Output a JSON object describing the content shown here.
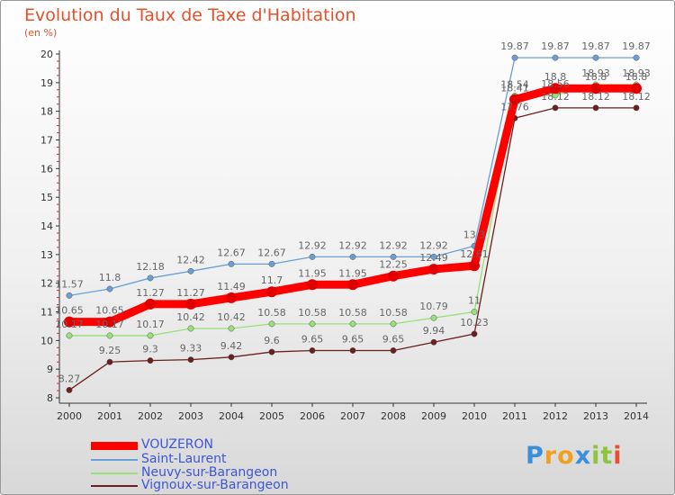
{
  "chart_data": {
    "type": "line",
    "title": "Evolution du Taux de Taxe d'Habitation",
    "subtitle": "(en %)",
    "x": [
      "2000",
      "2001",
      "2002",
      "2003",
      "2004",
      "2005",
      "2006",
      "2007",
      "2008",
      "2009",
      "2010",
      "2011",
      "2012",
      "2013",
      "2014"
    ],
    "ylim": [
      8,
      20
    ],
    "yticks": [
      "8",
      "9",
      "10",
      "11",
      "12",
      "13",
      "14",
      "15",
      "16",
      "17",
      "18",
      "19",
      "20"
    ],
    "grid": false,
    "legend": "bottom-left",
    "series": [
      {
        "name": "VOUZERON",
        "color": "#ff0000",
        "values": [
          10.65,
          10.65,
          11.27,
          11.27,
          11.49,
          11.7,
          11.95,
          11.95,
          12.25,
          12.49,
          12.61,
          18.41,
          18.8,
          18.8,
          18.8
        ],
        "labels": [
          "10.65",
          "10.65",
          "11.27",
          "11.27",
          "11.49",
          "11.7",
          "11.95",
          "11.95",
          "12.25",
          "12.49",
          "12.61",
          "18.41",
          "18.8",
          "18.8",
          "18.8"
        ]
      },
      {
        "name": "Saint-Laurent",
        "color": "#6b9fd4",
        "values": [
          11.57,
          11.8,
          12.18,
          12.42,
          12.67,
          12.67,
          12.92,
          12.92,
          12.92,
          12.92,
          13.3,
          19.87,
          19.87,
          19.87,
          19.87
        ],
        "labels": [
          "11.57",
          "11.8",
          "12.18",
          "12.42",
          "12.67",
          "12.67",
          "12.92",
          "12.92",
          "12.92",
          "12.92",
          "13.3",
          "19.87",
          "19.87",
          "19.87",
          "19.87"
        ]
      },
      {
        "name": "Neuvy-sur-Barangeon",
        "color": "#99e07a",
        "values": [
          10.17,
          10.17,
          10.17,
          10.42,
          10.42,
          10.58,
          10.58,
          10.58,
          10.58,
          10.79,
          11,
          18.54,
          18.56,
          18.93,
          18.93
        ],
        "labels": [
          "10.17",
          "10.17",
          "10.17",
          "10.42",
          "10.42",
          "10.58",
          "10.58",
          "10.58",
          "10.58",
          "10.79",
          "11",
          "18.54",
          "18.56",
          "18.93",
          "18.93"
        ]
      },
      {
        "name": "Vignoux-sur-Barangeon",
        "color": "#6b1f1f",
        "values": [
          8.27,
          9.25,
          9.3,
          9.33,
          9.42,
          9.6,
          9.65,
          9.65,
          9.65,
          9.94,
          10.23,
          17.76,
          18.12,
          18.12,
          18.12
        ],
        "labels": [
          "8.27",
          "9.25",
          "9.3",
          "9.33",
          "9.42",
          "9.6",
          "9.65",
          "9.65",
          "9.65",
          "9.94",
          "10.23",
          "17.76",
          "18.12",
          "18.12",
          "18.12"
        ]
      }
    ]
  },
  "logo": {
    "letters": [
      {
        "ch": "P",
        "color": "#3a8fd8"
      },
      {
        "ch": "r",
        "color": "#f0a020"
      },
      {
        "ch": "o",
        "color": "#f0a020"
      },
      {
        "ch": "x",
        "color": "#3a8fd8"
      },
      {
        "ch": "i",
        "color": "#8cc43c"
      },
      {
        "ch": "t",
        "color": "#8cc43c"
      },
      {
        "ch": "i",
        "color": "#e85030"
      }
    ]
  }
}
